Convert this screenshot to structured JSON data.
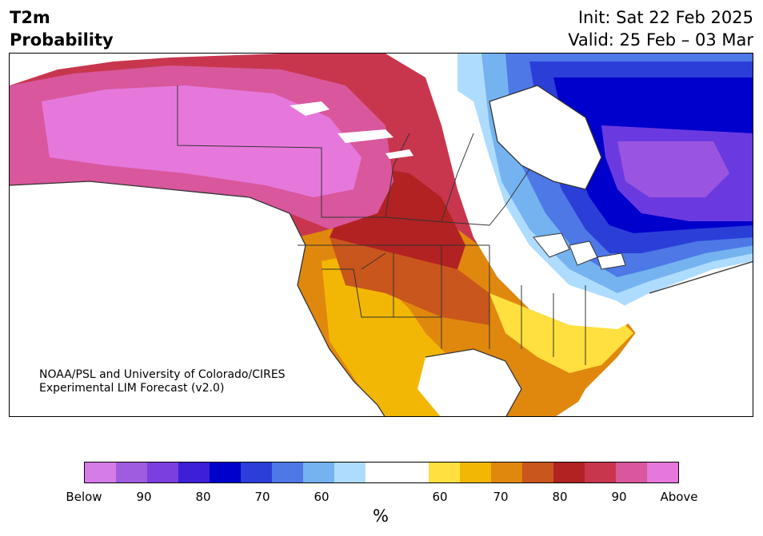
{
  "title": {
    "left_line1": "T2m",
    "left_line2": "Probability",
    "right_line1": "Init: Sat 22 Feb 2025",
    "right_line2": "Valid: 25 Feb – 03 Mar"
  },
  "credit": {
    "line1": "NOAA/PSL and University of Colorado/CIRES",
    "line2": "Experimental LIM Forecast (v2.0)"
  },
  "map": {
    "region": "North America",
    "colors": {
      "above_above": "#e678dc",
      "above_90": "#d9579c",
      "above_85": "#c8364e",
      "above_80": "#b22222",
      "above_75": "#c9561c",
      "above_70": "#e0880e",
      "above_65": "#f2b705",
      "above_60": "#ffe03e",
      "neutral": "#ffffff",
      "below_60": "#aedcff",
      "below_65": "#74b3f0",
      "below_70": "#4d78e6",
      "below_75": "#2b3fd8",
      "below_80": "#0000cc",
      "below_85": "#3a1fd6",
      "below_90": "#6a3ae0",
      "below_below": "#9a55e0"
    }
  },
  "colorbar": {
    "segments": [
      "#d67ce8",
      "#a05ce0",
      "#7a3fde",
      "#3d1fd8",
      "#0000cc",
      "#2b3fd8",
      "#4d78e6",
      "#74b3f0",
      "#aedcff",
      "#ffffff",
      "#ffffff",
      "#ffe03e",
      "#f2b705",
      "#e0880e",
      "#c9561c",
      "#b22222",
      "#c8364e",
      "#d9579c",
      "#e678dc"
    ],
    "tick_labels": [
      "Below",
      "90",
      "80",
      "70",
      "60",
      "60",
      "70",
      "80",
      "90",
      "Above"
    ],
    "unit": "%"
  }
}
